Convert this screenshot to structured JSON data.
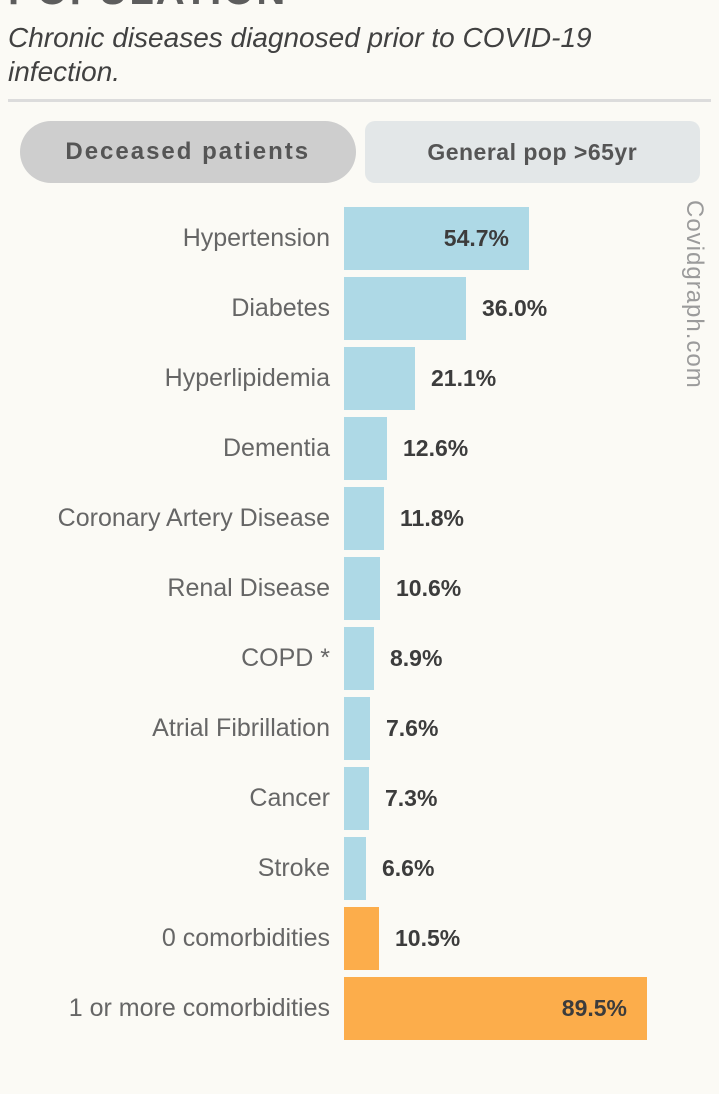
{
  "header": {
    "title": "POPULATION",
    "subtitle": "Chronic diseases diagnosed prior to COVID-19 infection."
  },
  "toggle": {
    "active_label": "Deceased patients",
    "inactive_label": "General pop >65yr"
  },
  "watermark": "Covidgraph.com",
  "colors": {
    "background": "#fbfaf5",
    "bar_blue": "#aed9e6",
    "bar_orange": "#fcad4b",
    "active_button_bg": "#cecece",
    "inactive_button_bg": "#e3e7e8",
    "category_text": "#666666",
    "value_text": "#3c3c3c"
  },
  "chart_data": {
    "type": "bar",
    "orientation": "horizontal",
    "title": "POPULATION",
    "subtitle": "Chronic diseases diagnosed prior to COVID-19 infection.",
    "selected_dataset": "Deceased patients",
    "xlabel": "",
    "ylabel": "",
    "xlim": [
      0,
      100
    ],
    "grid": false,
    "legend": false,
    "categories": [
      "Hypertension",
      "Diabetes",
      "Hyperlipidemia",
      "Dementia",
      "Coronary Artery Disease",
      "Renal Disease",
      "COPD *",
      "Atrial Fibrillation",
      "Cancer",
      "Stroke",
      "0 comorbidities",
      "1 or more comorbidities"
    ],
    "values": [
      54.7,
      36.0,
      21.1,
      12.6,
      11.8,
      10.6,
      8.9,
      7.6,
      7.3,
      6.6,
      10.5,
      89.5
    ],
    "value_labels": [
      "54.7%",
      "36.0%",
      "21.1%",
      "12.6%",
      "11.8%",
      "10.6%",
      "8.9%",
      "7.6%",
      "7.3%",
      "6.6%",
      "10.5%",
      "89.5%"
    ],
    "item_colors": [
      "blue",
      "blue",
      "blue",
      "blue",
      "blue",
      "blue",
      "blue",
      "blue",
      "blue",
      "blue",
      "orange",
      "orange"
    ]
  }
}
